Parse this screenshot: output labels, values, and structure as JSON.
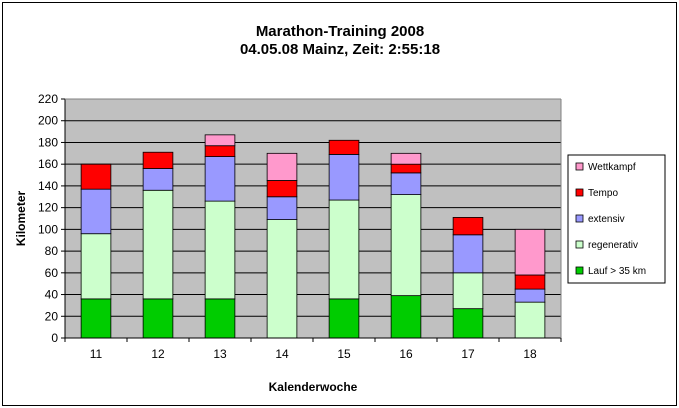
{
  "chart_data": {
    "type": "bar",
    "stacked": true,
    "title": "Marathon-Training 2008",
    "subtitle": "04.05.08 Mainz, Zeit: 2:55:18",
    "xlabel": "Kalenderwoche",
    "ylabel": "Kilometer",
    "ylim": [
      0,
      220
    ],
    "yticks": [
      0,
      20,
      40,
      60,
      80,
      100,
      120,
      140,
      160,
      180,
      200,
      220
    ],
    "grid": true,
    "legend_position": "right",
    "categories": [
      "11",
      "12",
      "13",
      "14",
      "15",
      "16",
      "17",
      "18"
    ],
    "series": [
      {
        "name": "Lauf > 35 km",
        "color": "#00cc00",
        "values": [
          36,
          36,
          36,
          0,
          36,
          39,
          27,
          0
        ]
      },
      {
        "name": "regenerativ",
        "color": "#ccffcc",
        "values": [
          60,
          100,
          90,
          109,
          91,
          93,
          33,
          33
        ]
      },
      {
        "name": "extensiv",
        "color": "#9999ff",
        "values": [
          41,
          20,
          41,
          21,
          42,
          20,
          35,
          12
        ]
      },
      {
        "name": "Tempo",
        "color": "#ff0000",
        "values": [
          23,
          15,
          10,
          15,
          13,
          8,
          16,
          13
        ]
      },
      {
        "name": "Wettkampf",
        "color": "#ff99cc",
        "values": [
          0,
          0,
          10,
          25,
          0,
          10,
          0,
          42
        ]
      }
    ],
    "legend_order": [
      "Wettkampf",
      "Tempo",
      "extensiv",
      "regenerativ",
      "Lauf > 35 km"
    ],
    "plot_background": "#c0c0c0"
  }
}
